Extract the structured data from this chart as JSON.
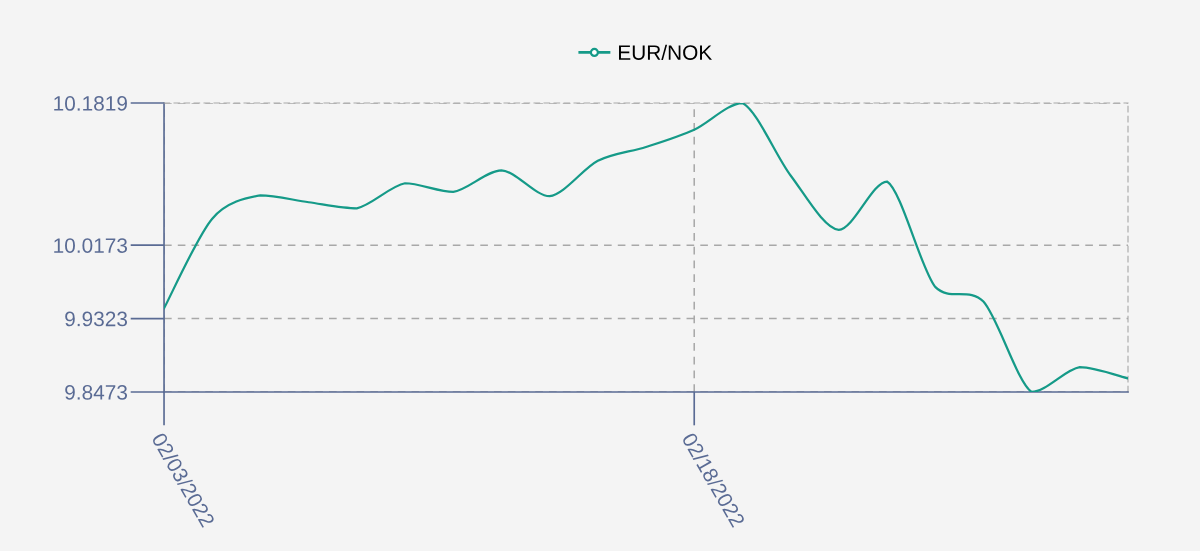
{
  "chart_data": {
    "type": "line",
    "categories": [
      "02/03/2022",
      null,
      null,
      null,
      null,
      null,
      null,
      null,
      null,
      null,
      null,
      "02/18/2022",
      null,
      null,
      null,
      null,
      null,
      null,
      null,
      null,
      null
    ],
    "series": [
      {
        "name": "EUR/NOK",
        "color": "#159a88",
        "values": [
          9.9442,
          10.048,
          10.075,
          10.067,
          10.06,
          10.089,
          10.079,
          10.104,
          10.074,
          10.115,
          10.131,
          10.151,
          10.1819,
          10.098,
          10.035,
          10.091,
          9.969,
          9.952,
          9.8473,
          9.876,
          9.863
        ]
      }
    ],
    "ylim": [
      9.8473,
      10.1819
    ],
    "yticks": [
      9.8473,
      9.9323,
      10.0173,
      10.1819
    ],
    "grid": true,
    "legend": "top",
    "marker": "none",
    "line_style": "solid"
  }
}
